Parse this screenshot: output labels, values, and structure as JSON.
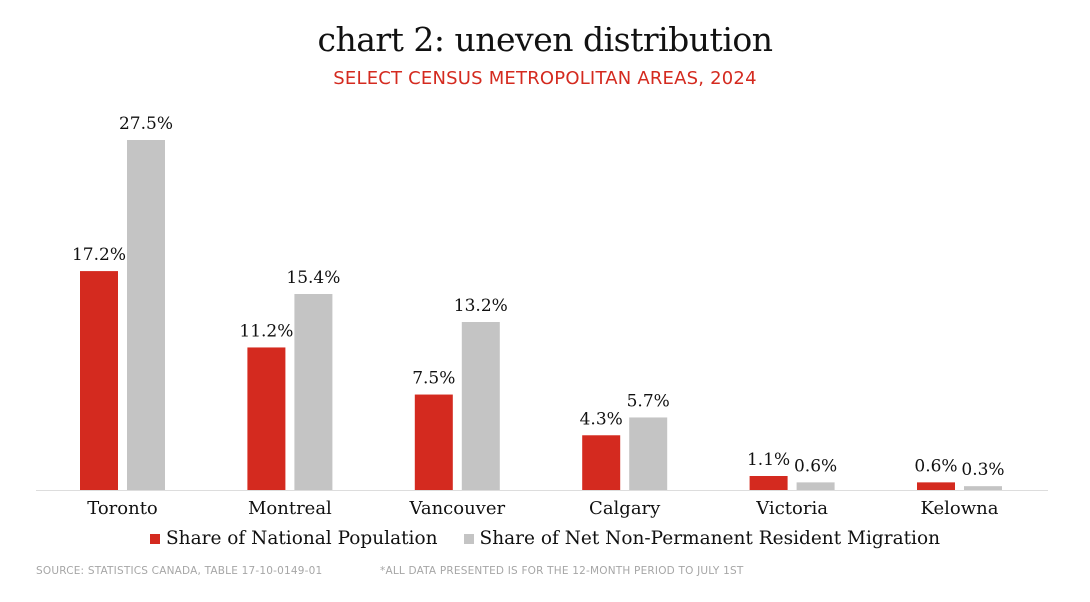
{
  "title": "chart 2: uneven distribution",
  "subtitle": "SELECT CENSUS METROPOLITAN AREAS, 2024",
  "colors": {
    "red": "#d42a1f",
    "gray": "#c4c4c4",
    "baseline": "#dddddd"
  },
  "chart_data": {
    "type": "bar",
    "categories": [
      "Toronto",
      "Montreal",
      "Vancouver",
      "Calgary",
      "Victoria",
      "Kelowna"
    ],
    "series": [
      {
        "name": "Share of National Population",
        "values": [
          17.2,
          11.2,
          7.5,
          4.3,
          1.1,
          0.6
        ],
        "labels": [
          "17.2%",
          "11.2%",
          "7.5%",
          "4.3%",
          "1.1%",
          "0.6%"
        ],
        "color": "#d42a1f"
      },
      {
        "name": "Share of Net Non-Permanent Resident Migration",
        "values": [
          27.5,
          15.4,
          13.2,
          5.7,
          0.6,
          0.3
        ],
        "labels": [
          "27.5%",
          "15.4%",
          "13.2%",
          "5.7%",
          "0.6%",
          "0.3%"
        ],
        "color": "#c4c4c4"
      }
    ],
    "ylim": [
      0,
      27.5
    ],
    "grid": false,
    "legend_position": "bottom-center"
  },
  "footer": {
    "source": "SOURCE: STATISTICS CANADA, TABLE 17-10-0149-01",
    "note": "*ALL DATA PRESENTED IS FOR THE 12-MONTH PERIOD TO JULY 1ST"
  }
}
